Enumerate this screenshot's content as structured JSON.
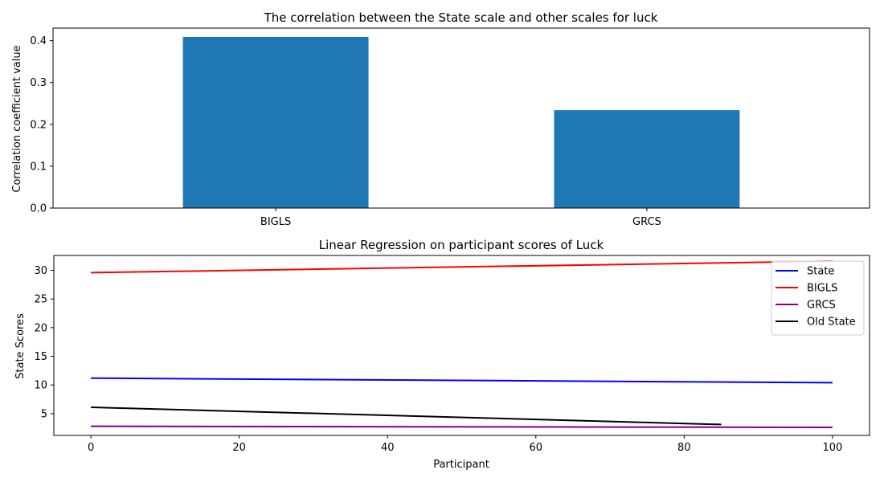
{
  "chart_data": [
    {
      "type": "bar",
      "title": "The correlation between the State scale and other scales for luck",
      "xlabel": "",
      "ylabel": "Correlation coefficient value",
      "categories": [
        "BIGLS",
        "GRCS"
      ],
      "values": [
        0.409,
        0.234
      ],
      "ylim": [
        0,
        0.43
      ],
      "yticks": [
        0.0,
        0.1,
        0.2,
        0.3,
        0.4
      ],
      "ytick_labels": [
        "0.0",
        "0.1",
        "0.2",
        "0.3",
        "0.4"
      ],
      "bar_color": "#1f77b4",
      "grid": false
    },
    {
      "type": "line",
      "title": "Linear Regression on participant scores of Luck",
      "xlabel": "Participant",
      "ylabel": "State Scores",
      "xlim": [
        -5,
        105
      ],
      "ylim": [
        1.2,
        32.6
      ],
      "xticks": [
        0,
        20,
        40,
        60,
        80,
        100
      ],
      "xtick_labels": [
        "0",
        "20",
        "40",
        "60",
        "80",
        "100"
      ],
      "yticks": [
        5,
        10,
        15,
        20,
        25,
        30
      ],
      "ytick_labels": [
        "5",
        "10",
        "15",
        "20",
        "25",
        "30"
      ],
      "grid": false,
      "legend_position": "top-right",
      "series": [
        {
          "name": "State",
          "color": "#0000ff",
          "x": [
            0,
            100
          ],
          "y": [
            11.2,
            10.4
          ]
        },
        {
          "name": "BIGLS",
          "color": "#ff0000",
          "x": [
            0,
            100
          ],
          "y": [
            29.6,
            31.6
          ]
        },
        {
          "name": "GRCS",
          "color": "#800080",
          "x": [
            0,
            100
          ],
          "y": [
            2.8,
            2.6
          ]
        },
        {
          "name": "Old State",
          "color": "#000000",
          "x": [
            0,
            85
          ],
          "y": [
            6.1,
            3.1
          ]
        }
      ]
    }
  ]
}
